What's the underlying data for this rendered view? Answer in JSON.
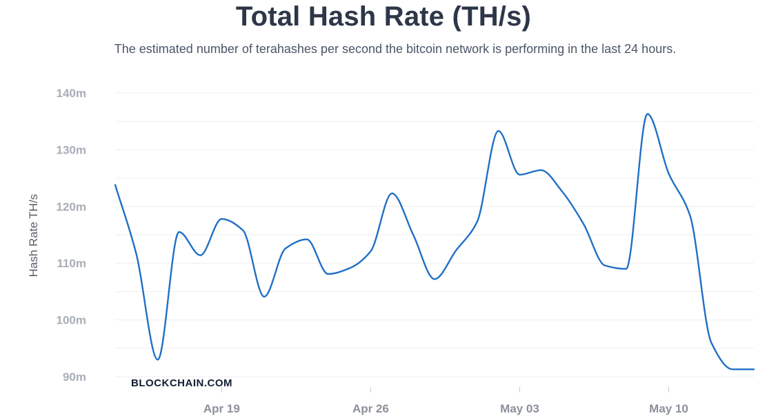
{
  "title": "Total Hash Rate (TH/s)",
  "subtitle": "The estimated number of terahashes per second the bitcoin network is performing in the last 24 hours.",
  "brand": "BLOCKCHAIN.COM",
  "colors": {
    "line": "#1f6fc5",
    "grid": "#eeeef1",
    "title": "#2d3748",
    "subtitle": "#4a5568"
  },
  "chart_data": {
    "type": "line",
    "title": "Total Hash Rate (TH/s)",
    "ylabel": "Hash Rate TH/s",
    "xlabel": "",
    "ylim": [
      90,
      140
    ],
    "xlim": [
      "2020-04-14",
      "2020-05-14"
    ],
    "grid": true,
    "legend": "none",
    "y_ticks": [
      {
        "value": 90,
        "label": "90m"
      },
      {
        "value": 100,
        "label": "100m"
      },
      {
        "value": 110,
        "label": "110m"
      },
      {
        "value": 120,
        "label": "120m"
      },
      {
        "value": 130,
        "label": "130m"
      },
      {
        "value": 140,
        "label": "140m"
      }
    ],
    "x_ticks": [
      {
        "date": "2020-04-19",
        "label": "Apr 19"
      },
      {
        "date": "2020-04-26",
        "label": "Apr 26"
      },
      {
        "date": "2020-05-03",
        "label": "May 03"
      },
      {
        "date": "2020-05-10",
        "label": "May 10"
      }
    ],
    "series": [
      {
        "x": [
          "2020-04-14",
          "2020-04-15",
          "2020-04-16",
          "2020-04-17",
          "2020-04-18",
          "2020-04-19",
          "2020-04-20",
          "2020-04-21",
          "2020-04-22",
          "2020-04-23",
          "2020-04-24",
          "2020-04-25",
          "2020-04-26",
          "2020-04-27",
          "2020-04-28",
          "2020-04-29",
          "2020-04-30",
          "2020-05-01",
          "2020-05-02",
          "2020-05-03",
          "2020-05-04",
          "2020-05-05",
          "2020-05-06",
          "2020-05-07",
          "2020-05-08",
          "2020-05-09",
          "2020-05-10",
          "2020-05-11",
          "2020-05-12",
          "2020-05-13",
          "2020-05-14"
        ],
        "values": [
          123.8,
          111.5,
          93.0,
          115.5,
          111.4,
          117.8,
          115.8,
          104.1,
          112.6,
          114.2,
          108.1,
          109.1,
          112.1,
          122.3,
          115.0,
          107.2,
          112.2,
          117.3,
          133.3,
          125.6,
          126.4,
          122.6,
          116.9,
          109.6,
          109.0,
          136.3,
          125.8,
          118.4,
          96.0,
          91.3,
          91.3
        ]
      }
    ]
  }
}
